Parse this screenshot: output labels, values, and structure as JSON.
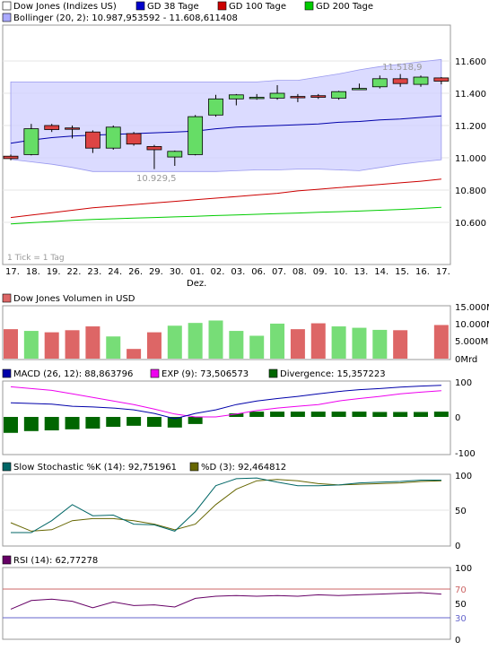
{
  "colors": {
    "band": "#ccccff",
    "panel_bg": "#ffffff",
    "up": "#66dd66",
    "down": "#dd4444",
    "gd38": "#0000aa",
    "gd100": "#cc0000",
    "gd200": "#00cc00",
    "macd": "#0000aa",
    "exp": "#ee00ee",
    "divergence": "#006600",
    "stoch_k": "#006666",
    "stoch_d": "#666600",
    "rsi": "#660066",
    "rsi70": "#cc6666",
    "rsi30": "#6666cc"
  },
  "main": {
    "legend": [
      {
        "label": "Dow Jones (Indizes US)",
        "color": "#ffffff"
      },
      {
        "label": "GD 38 Tage",
        "color": "#0000cc"
      },
      {
        "label": "GD 100 Tage",
        "color": "#cc0000"
      },
      {
        "label": "GD 200 Tage",
        "color": "#00cc00"
      },
      {
        "label": "Bollinger (20, 2): 10.987,953592 - 11.608,611408",
        "color": "#aaaaff"
      }
    ],
    "tick_note": "1 Tick = 1 Tag",
    "annotations": {
      "high": "11.518,9",
      "low": "10.929,5"
    },
    "month_label": "Dez.",
    "y_ticks": [
      "11.600",
      "11.400",
      "11.200",
      "11.000",
      "10.800",
      "10.600"
    ],
    "x_labels": [
      "17.",
      "18.",
      "19.",
      "22.",
      "23.",
      "24.",
      "26.",
      "29.",
      "30.",
      "01.",
      "02.",
      "03.",
      "06.",
      "07.",
      "08.",
      "09.",
      "10.",
      "13.",
      "14.",
      "15.",
      "16.",
      "17."
    ]
  },
  "volume": {
    "legend": "Dow Jones Volumen in USD",
    "y_ticks": [
      "15.000Mrd",
      "10.000Mrd",
      "5.000Mrd",
      "0Mrd"
    ]
  },
  "macd": {
    "legend": [
      "MACD (26, 12): 88,863796",
      "EXP (9): 73,506573",
      "Divergence: 15,357223"
    ],
    "y_ticks": [
      "100",
      "0",
      "-100"
    ]
  },
  "stoch": {
    "legend": [
      "Slow Stochastic %K (14): 92,751961",
      "%D (3): 92,464812"
    ],
    "y_ticks": [
      "100",
      "50",
      "0"
    ]
  },
  "rsi": {
    "legend": "RSI (14): 62,77278",
    "y_ticks": [
      "100",
      "70",
      "50",
      "30",
      "0"
    ]
  },
  "chart_data": [
    {
      "type": "candlestick",
      "title": "Dow Jones (Indizes US)",
      "x": [
        "17.",
        "18.",
        "19.",
        "22.",
        "23.",
        "24.",
        "26.",
        "29.",
        "30.",
        "01.",
        "02.",
        "03.",
        "06.",
        "07.",
        "08.",
        "09.",
        "10.",
        "13.",
        "14.",
        "15.",
        "16.",
        "17."
      ],
      "open": [
        11010,
        11020,
        11200,
        11185,
        11160,
        11060,
        11150,
        11070,
        11005,
        11020,
        11265,
        11365,
        11370,
        11370,
        11380,
        11385,
        11370,
        11430,
        11440,
        11490,
        11455,
        11495
      ],
      "close": [
        10995,
        11180,
        11175,
        11180,
        11060,
        11190,
        11085,
        11050,
        11040,
        11255,
        11365,
        11390,
        11375,
        11400,
        11375,
        11375,
        11410,
        11430,
        11490,
        11460,
        11500,
        11475
      ],
      "high": [
        11020,
        11210,
        11210,
        11200,
        11170,
        11200,
        11160,
        11080,
        11045,
        11265,
        11390,
        11395,
        11395,
        11450,
        11395,
        11395,
        11415,
        11460,
        11510,
        11519,
        11510,
        11500
      ],
      "low": [
        10985,
        11015,
        11160,
        11120,
        11030,
        11050,
        11075,
        10930,
        10950,
        11015,
        11255,
        11325,
        11360,
        11360,
        11345,
        11365,
        11360,
        11420,
        11430,
        11440,
        11440,
        11455
      ],
      "bollinger_upper": [
        11470,
        11470,
        11470,
        11470,
        11470,
        11470,
        11470,
        11470,
        11470,
        11470,
        11470,
        11470,
        11470,
        11480,
        11480,
        11500,
        11520,
        11545,
        11565,
        11580,
        11595,
        11609
      ],
      "bollinger_lower": [
        10990,
        10975,
        10960,
        10940,
        10915,
        10915,
        10915,
        10915,
        10915,
        10915,
        10915,
        10920,
        10925,
        10925,
        10930,
        10930,
        10925,
        10920,
        10940,
        10960,
        10975,
        10988
      ],
      "gd38": [
        11090,
        11110,
        11125,
        11135,
        11140,
        11145,
        11150,
        11155,
        11160,
        11165,
        11180,
        11190,
        11195,
        11200,
        11205,
        11210,
        11220,
        11225,
        11235,
        11240,
        11250,
        11260
      ],
      "gd100": [
        10630,
        10645,
        10660,
        10675,
        10690,
        10700,
        10710,
        10720,
        10730,
        10740,
        10750,
        10760,
        10770,
        10780,
        10795,
        10805,
        10815,
        10825,
        10835,
        10845,
        10855,
        10868
      ],
      "gd200": [
        10590,
        10598,
        10605,
        10612,
        10618,
        10622,
        10626,
        10630,
        10634,
        10638,
        10642,
        10646,
        10650,
        10654,
        10658,
        10662,
        10666,
        10670,
        10675,
        10680,
        10686,
        10693
      ],
      "ylim": [
        10500,
        11700
      ]
    },
    {
      "type": "bar",
      "title": "Dow Jones Volumen in USD",
      "unit": "Mrd",
      "values": [
        8500,
        8000,
        7600,
        8200,
        9300,
        6400,
        2800,
        7600,
        9500,
        10300,
        11000,
        8000,
        6600,
        10100,
        8500,
        10200,
        9300,
        8900,
        8300,
        8200,
        0,
        9700
      ],
      "ylim": [
        0,
        15000
      ]
    },
    {
      "type": "line",
      "title": "MACD",
      "series": [
        {
          "name": "MACD (26, 12)",
          "values": [
            40,
            38,
            36,
            30,
            28,
            25,
            20,
            10,
            -5,
            10,
            20,
            35,
            45,
            52,
            58,
            65,
            72,
            77,
            80,
            84,
            87,
            89
          ]
        },
        {
          "name": "EXP (9)",
          "values": [
            85,
            80,
            75,
            65,
            55,
            45,
            35,
            22,
            8,
            0,
            0,
            8,
            18,
            25,
            30,
            35,
            45,
            52,
            58,
            65,
            70,
            74
          ]
        },
        {
          "name": "Divergence",
          "values": [
            -45,
            -40,
            -38,
            -35,
            -33,
            -28,
            -25,
            -28,
            -30,
            -20,
            0,
            10,
            15,
            15,
            15,
            15,
            15,
            15,
            14,
            14,
            14,
            15
          ]
        }
      ],
      "ylim": [
        -100,
        100
      ]
    },
    {
      "type": "line",
      "title": "Slow Stochastic",
      "series": [
        {
          "name": "Slow Stochastic %K (14)",
          "values": [
            18,
            18,
            35,
            58,
            42,
            43,
            30,
            29,
            20,
            48,
            85,
            95,
            96,
            90,
            85,
            85,
            86,
            89,
            90,
            91,
            93,
            93
          ]
        },
        {
          "name": "%D (3)",
          "values": [
            32,
            20,
            22,
            35,
            38,
            38,
            35,
            30,
            22,
            30,
            58,
            80,
            92,
            94,
            92,
            88,
            86,
            87,
            88,
            89,
            91,
            92
          ]
        }
      ],
      "ylim": [
        0,
        100
      ]
    },
    {
      "type": "line",
      "title": "RSI (14)",
      "series": [
        {
          "name": "RSI (14)",
          "values": [
            42,
            54,
            56,
            53,
            44,
            52,
            47,
            48,
            45,
            57,
            60,
            61,
            60,
            61,
            60,
            62,
            61,
            62,
            63,
            64,
            65,
            63
          ]
        }
      ],
      "ylim": [
        0,
        100
      ]
    }
  ]
}
